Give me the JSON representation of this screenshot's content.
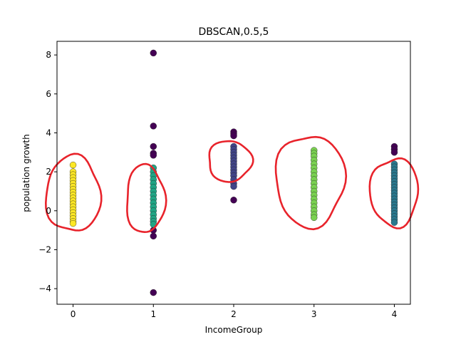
{
  "chart_data": {
    "type": "scatter",
    "title": "DBSCAN,0.5,5",
    "xlabel": "IncomeGroup",
    "ylabel": "population growth",
    "xlim": [
      -0.2,
      4.2
    ],
    "ylim": [
      -4.8,
      8.7
    ],
    "x_ticks": [
      0,
      1,
      2,
      3,
      4
    ],
    "y_ticks": [
      -4,
      -2,
      0,
      2,
      4,
      6,
      8
    ],
    "grid": false,
    "colors": {
      "noise": "#440154",
      "cluster_0": "#fde725",
      "cluster_1": "#21a585",
      "cluster_2": "#414487",
      "cluster_3": "#7ad151",
      "cluster_4": "#2a788e",
      "annotation": "#e8232b"
    },
    "series": [
      {
        "color_key": "noise",
        "points": [
          [
            1,
            8.1
          ],
          [
            1,
            4.35
          ],
          [
            1,
            3.3
          ],
          [
            1,
            2.95
          ],
          [
            1,
            2.85
          ],
          [
            1,
            -1.0
          ],
          [
            1,
            -1.3
          ],
          [
            1,
            -4.2
          ],
          [
            2,
            4.05
          ],
          [
            2,
            3.95
          ],
          [
            2,
            3.85
          ],
          [
            2,
            0.55
          ],
          [
            4,
            3.3
          ],
          [
            4,
            3.15
          ],
          [
            4,
            3.0
          ]
        ]
      },
      {
        "color_key": "cluster_0",
        "points": [
          [
            0,
            2.35
          ],
          [
            0,
            2.0
          ],
          [
            0,
            1.85
          ],
          [
            0,
            1.7
          ],
          [
            0,
            1.55
          ],
          [
            0,
            1.4
          ],
          [
            0,
            1.25
          ],
          [
            0,
            1.1
          ],
          [
            0,
            0.95
          ],
          [
            0,
            0.8
          ],
          [
            0,
            0.65
          ],
          [
            0,
            0.5
          ],
          [
            0,
            0.35
          ],
          [
            0,
            0.2
          ],
          [
            0,
            0.05
          ],
          [
            0,
            -0.1
          ],
          [
            0,
            -0.25
          ],
          [
            0,
            -0.4
          ],
          [
            0,
            -0.55
          ],
          [
            0,
            -0.65
          ]
        ]
      },
      {
        "color_key": "cluster_1",
        "points": [
          [
            1,
            2.2
          ],
          [
            1,
            2.0
          ],
          [
            1,
            1.8
          ],
          [
            1,
            1.6
          ],
          [
            1,
            1.4
          ],
          [
            1,
            1.2
          ],
          [
            1,
            1.0
          ],
          [
            1,
            0.8
          ],
          [
            1,
            0.6
          ],
          [
            1,
            0.4
          ],
          [
            1,
            0.2
          ],
          [
            1,
            0.0
          ],
          [
            1,
            -0.2
          ],
          [
            1,
            -0.4
          ],
          [
            1,
            -0.55
          ],
          [
            1,
            -0.7
          ]
        ]
      },
      {
        "color_key": "cluster_2",
        "points": [
          [
            2,
            3.3
          ],
          [
            2,
            3.15
          ],
          [
            2,
            3.0
          ],
          [
            2,
            2.85
          ],
          [
            2,
            2.7
          ],
          [
            2,
            2.55
          ],
          [
            2,
            2.4
          ],
          [
            2,
            2.25
          ],
          [
            2,
            2.1
          ],
          [
            2,
            1.95
          ],
          [
            2,
            1.8
          ],
          [
            2,
            1.6
          ],
          [
            2,
            1.4
          ],
          [
            2,
            1.25
          ]
        ]
      },
      {
        "color_key": "cluster_3",
        "points": [
          [
            3,
            3.1
          ],
          [
            3,
            2.95
          ],
          [
            3,
            2.8
          ],
          [
            3,
            2.6
          ],
          [
            3,
            2.4
          ],
          [
            3,
            2.2
          ],
          [
            3,
            2.0
          ],
          [
            3,
            1.8
          ],
          [
            3,
            1.6
          ],
          [
            3,
            1.4
          ],
          [
            3,
            1.2
          ],
          [
            3,
            1.0
          ],
          [
            3,
            0.8
          ],
          [
            3,
            0.6
          ],
          [
            3,
            0.4
          ],
          [
            3,
            0.2
          ],
          [
            3,
            0.0
          ],
          [
            3,
            -0.2
          ],
          [
            3,
            -0.35
          ]
        ]
      },
      {
        "color_key": "cluster_4",
        "points": [
          [
            4,
            2.4
          ],
          [
            4,
            2.25
          ],
          [
            4,
            2.1
          ],
          [
            4,
            1.95
          ],
          [
            4,
            1.8
          ],
          [
            4,
            1.65
          ],
          [
            4,
            1.5
          ],
          [
            4,
            1.35
          ],
          [
            4,
            1.2
          ],
          [
            4,
            1.05
          ],
          [
            4,
            0.9
          ],
          [
            4,
            0.75
          ],
          [
            4,
            0.6
          ],
          [
            4,
            0.45
          ],
          [
            4,
            0.3
          ],
          [
            4,
            0.15
          ],
          [
            4,
            0.0
          ],
          [
            4,
            -0.15
          ],
          [
            4,
            -0.3
          ],
          [
            4,
            -0.45
          ],
          [
            4,
            -0.6
          ]
        ]
      }
    ],
    "annotations": {
      "shape": "hand-drawn-loop",
      "color_key": "annotation",
      "loops": [
        {
          "cx": 0.0,
          "cy": 0.85,
          "rx": 0.34,
          "ry": 1.95
        },
        {
          "cx": 0.9,
          "cy": 0.6,
          "rx": 0.24,
          "ry": 1.75
        },
        {
          "cx": 1.95,
          "cy": 2.55,
          "rx": 0.27,
          "ry": 1.05
        },
        {
          "cx": 2.95,
          "cy": 1.55,
          "rx": 0.43,
          "ry": 2.35
        },
        {
          "cx": 4.0,
          "cy": 0.95,
          "rx": 0.3,
          "ry": 1.75
        }
      ]
    }
  }
}
